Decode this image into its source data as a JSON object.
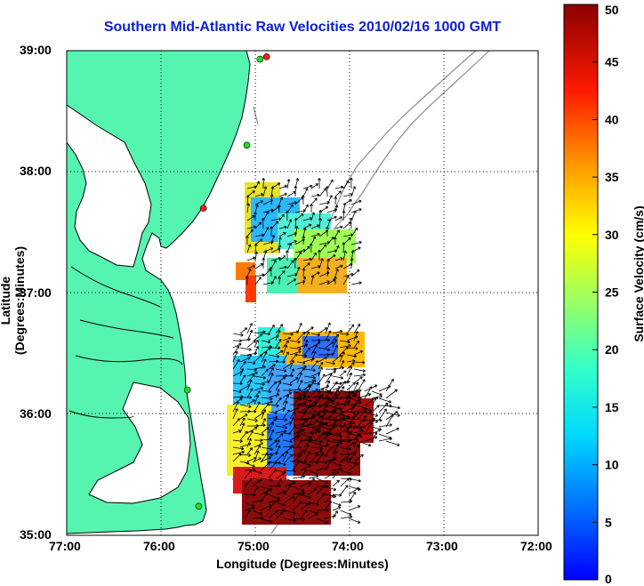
{
  "chart_data": {
    "type": "heatmap",
    "title": "Southern Mid-Atlantic Raw Velocities 2010/02/16 1000 GMT",
    "xlabel": "Longitude (Degrees:Minutes)",
    "ylabel": "Latitude (Degrees:Minutes)",
    "colorbar_label": "Surface Velocity (cm/s)",
    "x_ticks": [
      "77:00",
      "76:00",
      "75:00",
      "74:00",
      "73:00",
      "72:00"
    ],
    "y_ticks": [
      "39:00",
      "38:00",
      "37:00",
      "36:00",
      "35:00"
    ],
    "xlim": [
      -77,
      -72
    ],
    "ylim": [
      35,
      39
    ],
    "colorbar_ticks": [
      "0",
      "5",
      "10",
      "15",
      "20",
      "25",
      "30",
      "35",
      "40",
      "45",
      "50"
    ],
    "colorbar_range": [
      0,
      50
    ],
    "grid": true,
    "colors": {
      "title": "#0b1fd6",
      "land": "#55f5b0",
      "coast": "#000000",
      "bathymetry": "#8c8c8c"
    },
    "stations": [
      {
        "lon": -74.88,
        "lat": 38.95,
        "color": "#ff1a1a"
      },
      {
        "lon": -74.95,
        "lat": 38.93,
        "color": "#22dd22"
      },
      {
        "lon": -75.09,
        "lat": 38.22,
        "color": "#22dd22"
      },
      {
        "lon": -75.55,
        "lat": 37.7,
        "color": "#ff1a1a"
      },
      {
        "lon": -75.72,
        "lat": 36.2,
        "color": "#22dd22"
      },
      {
        "lon": -75.6,
        "lat": 35.24,
        "color": "#22dd22"
      }
    ]
  }
}
